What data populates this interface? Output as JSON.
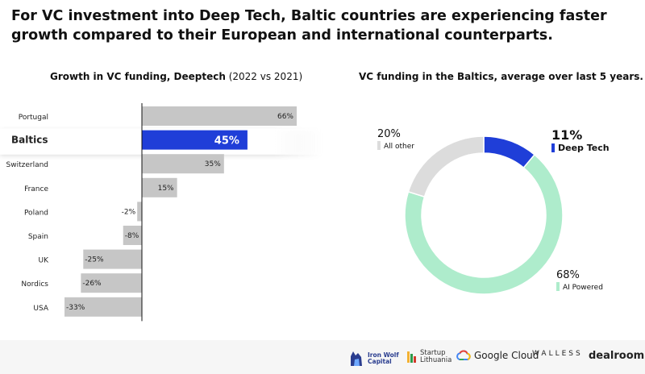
{
  "headline": "For VC investment into Deep Tech, Baltic countries are experiencing faster growth compared to their European and international counterparts.",
  "colors": {
    "bar_gray": "#c6c6c6",
    "highlight": "#1f3ed8",
    "deep_tech": "#1f3ed8",
    "ai": "#aeeccc",
    "other": "#dcdcdc"
  },
  "chart_data": [
    {
      "type": "bar",
      "orientation": "horizontal",
      "title_bold": "Growth in VC funding, Deeptech",
      "title_rest": " (2022 vs 2021)",
      "categories": [
        "Portugal",
        "Baltics",
        "Switzerland",
        "France",
        "Poland",
        "Spain",
        "UK",
        "Nordics",
        "USA"
      ],
      "values": [
        66,
        45,
        35,
        15,
        -2,
        -8,
        -25,
        -26,
        -33
      ],
      "labels": [
        "66%",
        "45%",
        "35%",
        "15%",
        "-2%",
        "-8%",
        "-25%",
        "-26%",
        "-33%"
      ],
      "highlight": "Baltics",
      "unit": "%",
      "xlim": [
        -35,
        70
      ]
    },
    {
      "type": "pie",
      "style": "donut",
      "title": "VC funding in the Baltics, average over last 5 years.",
      "slices": [
        {
          "name": "Deep Tech",
          "value": 11,
          "label": "11%"
        },
        {
          "name": "AI Powered",
          "value": 68,
          "label": "68%"
        },
        {
          "name": "All other",
          "value": 20,
          "label": "20%"
        }
      ]
    }
  ],
  "footer": {
    "logos": [
      "Iron Wolf Capital",
      "Startup Lithuania",
      "Google Cloud",
      "WALLESS",
      "dealroom.co"
    ],
    "ironwolf_line1": "Iron Wolf",
    "ironwolf_line2": "Capital",
    "startup_line1": "Startup",
    "startup_line2": "Lithuania"
  }
}
